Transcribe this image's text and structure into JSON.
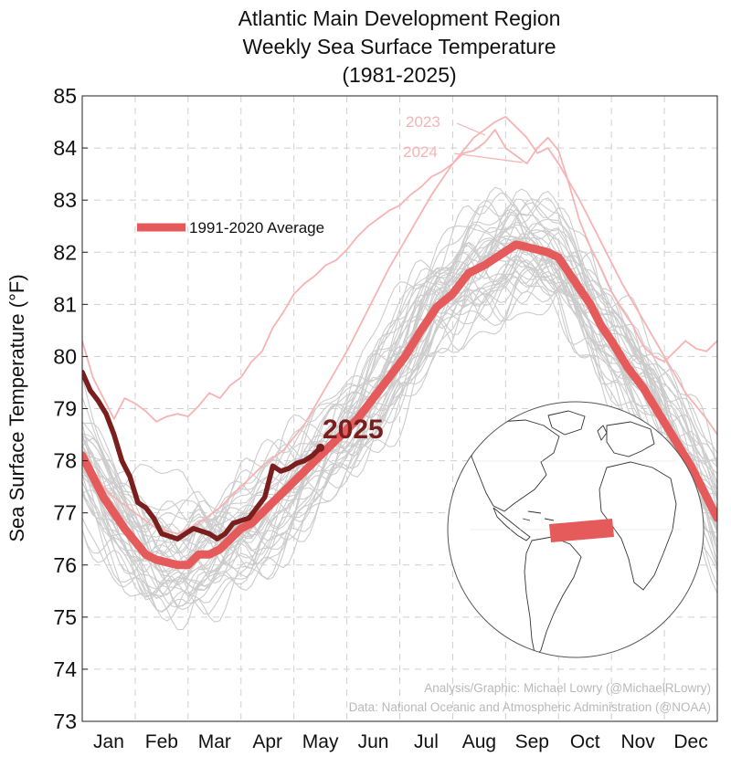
{
  "chart_data": {
    "type": "line",
    "title": [
      "Atlantic Main Development Region",
      "Weekly Sea Surface Temperature",
      "(1981-2025)"
    ],
    "ylabel": "Sea Surface Temperature (°F)",
    "xlabel": "",
    "ylim": [
      73,
      85
    ],
    "yticks": [
      73,
      74,
      75,
      76,
      77,
      78,
      79,
      80,
      81,
      82,
      83,
      84,
      85
    ],
    "x_unit": "month (1 = Jan 1)",
    "xlim": [
      1,
      13
    ],
    "month_labels": [
      "Jan",
      "Feb",
      "Mar",
      "Apr",
      "May",
      "Jun",
      "Jul",
      "Aug",
      "Sep",
      "Oct",
      "Nov",
      "Dec"
    ],
    "grid": true,
    "legend_placement": "upper-left",
    "colors": {
      "average": "#e55a5a",
      "current_year": "#7a1e1e",
      "highlight_years": "#f7b3b3",
      "historical": "#cccccc",
      "credit": "#b9b9b9"
    },
    "series": [
      {
        "name": "1991-2020 Average",
        "x": [
          1.0,
          1.2,
          1.4,
          1.6,
          1.8,
          2.0,
          2.2,
          2.4,
          2.6,
          2.8,
          3.0,
          3.2,
          3.4,
          3.6,
          3.8,
          4.0,
          4.2,
          4.4,
          4.6,
          4.8,
          5.0,
          5.3,
          5.6,
          5.9,
          6.2,
          6.5,
          6.8,
          7.1,
          7.4,
          7.7,
          8.0,
          8.3,
          8.6,
          8.9,
          9.2,
          9.4,
          9.6,
          9.8,
          10.0,
          10.2,
          10.4,
          10.6,
          10.8,
          11.0,
          11.3,
          11.6,
          11.9,
          12.2,
          12.5,
          12.8,
          13.0
        ],
        "values": [
          78.1,
          77.7,
          77.3,
          77.0,
          76.7,
          76.45,
          76.2,
          76.1,
          76.05,
          76.0,
          76.0,
          76.2,
          76.2,
          76.3,
          76.5,
          76.7,
          76.8,
          77.0,
          77.2,
          77.4,
          77.6,
          77.9,
          78.2,
          78.5,
          78.8,
          79.2,
          79.6,
          80.0,
          80.5,
          80.95,
          81.2,
          81.6,
          81.75,
          81.95,
          82.15,
          82.1,
          82.05,
          82.0,
          81.9,
          81.6,
          81.3,
          81.0,
          80.6,
          80.3,
          79.8,
          79.4,
          78.9,
          78.4,
          77.9,
          77.3,
          76.9
        ]
      },
      {
        "name": "2025",
        "x": [
          1.0,
          1.15,
          1.3,
          1.45,
          1.6,
          1.75,
          1.9,
          2.05,
          2.2,
          2.35,
          2.5,
          2.65,
          2.8,
          2.95,
          3.1,
          3.25,
          3.4,
          3.55,
          3.7,
          3.85,
          4.0,
          4.15,
          4.3,
          4.45,
          4.6,
          4.75,
          4.9,
          5.05,
          5.2,
          5.35,
          5.5
        ],
        "values": [
          79.7,
          79.35,
          79.15,
          78.9,
          78.5,
          78.0,
          77.7,
          77.2,
          77.1,
          76.9,
          76.6,
          76.55,
          76.5,
          76.6,
          76.7,
          76.65,
          76.6,
          76.5,
          76.6,
          76.8,
          76.85,
          76.9,
          77.1,
          77.3,
          77.9,
          77.8,
          77.85,
          77.95,
          78.0,
          78.1,
          78.25
        ]
      },
      {
        "name": "2023",
        "x": [
          1.0,
          1.3,
          1.6,
          2.0,
          2.4,
          2.8,
          3.2,
          3.6,
          4.0,
          4.4,
          4.8,
          5.2,
          5.6,
          6.0,
          6.4,
          6.8,
          7.2,
          7.6,
          8.0,
          8.4,
          8.8,
          9.0,
          9.2,
          9.4,
          9.6,
          9.8,
          10.0,
          10.4,
          10.8,
          11.2,
          11.6,
          12.0,
          12.4,
          12.8,
          13.0
        ],
        "values": [
          78.0,
          77.6,
          77.3,
          77.0,
          76.7,
          76.6,
          76.8,
          77.1,
          77.5,
          77.9,
          78.2,
          78.7,
          79.4,
          80.1,
          80.9,
          81.7,
          82.4,
          83.1,
          83.7,
          84.2,
          84.5,
          84.6,
          84.4,
          84.2,
          83.9,
          84.0,
          83.7,
          83.0,
          82.2,
          81.4,
          80.7,
          80.0,
          79.3,
          78.8,
          78.5
        ]
      },
      {
        "name": "2024",
        "x": [
          1.0,
          1.2,
          1.4,
          1.6,
          1.8,
          2.0,
          2.2,
          2.4,
          2.6,
          2.8,
          3.0,
          3.2,
          3.4,
          3.6,
          3.8,
          4.0,
          4.2,
          4.4,
          4.6,
          4.8,
          5.0,
          5.2,
          5.4,
          5.6,
          5.8,
          6.0,
          6.2,
          6.4,
          6.6,
          6.8,
          7.0,
          7.2,
          7.4,
          7.6,
          7.8,
          8.0,
          8.2,
          8.4,
          8.6,
          8.8,
          9.0,
          9.2,
          9.4,
          9.6,
          9.8,
          10.0,
          10.2,
          10.4,
          10.6,
          10.8,
          11.0,
          11.2,
          11.4,
          11.6,
          11.8,
          12.0,
          12.2,
          12.4,
          12.6,
          12.8,
          13.0
        ],
        "values": [
          80.3,
          79.6,
          79.2,
          78.8,
          79.2,
          79.1,
          78.95,
          78.75,
          78.85,
          78.9,
          78.85,
          79.05,
          79.3,
          79.2,
          79.45,
          79.6,
          79.9,
          80.1,
          80.55,
          80.85,
          81.2,
          81.4,
          81.55,
          81.75,
          81.85,
          82.05,
          82.3,
          82.5,
          82.65,
          82.8,
          82.9,
          83.1,
          83.25,
          83.45,
          83.55,
          83.7,
          83.9,
          83.95,
          84.1,
          84.35,
          84.0,
          83.85,
          83.7,
          84.0,
          84.2,
          83.95,
          83.3,
          82.6,
          82.1,
          81.7,
          81.25,
          80.9,
          80.6,
          80.2,
          80.0,
          79.9,
          80.1,
          80.3,
          80.15,
          80.1,
          80.3
        ]
      }
    ],
    "historical_years": {
      "name": "1981-2022 individual years",
      "count": 42
    },
    "annotations": {
      "label_2023": "2023",
      "label_2024": "2024",
      "label_2025": "2025",
      "credit_line_1": "Analysis/Graphic: Michael Lowry (@MichaelRLowry)",
      "credit_line_2": "Data: National Oceanic and Atmospheric Administration (@NOAA)"
    },
    "inset": {
      "type": "globe-map",
      "highlight": "Main Development Region box",
      "highlight_color": "#e55a5a"
    }
  }
}
